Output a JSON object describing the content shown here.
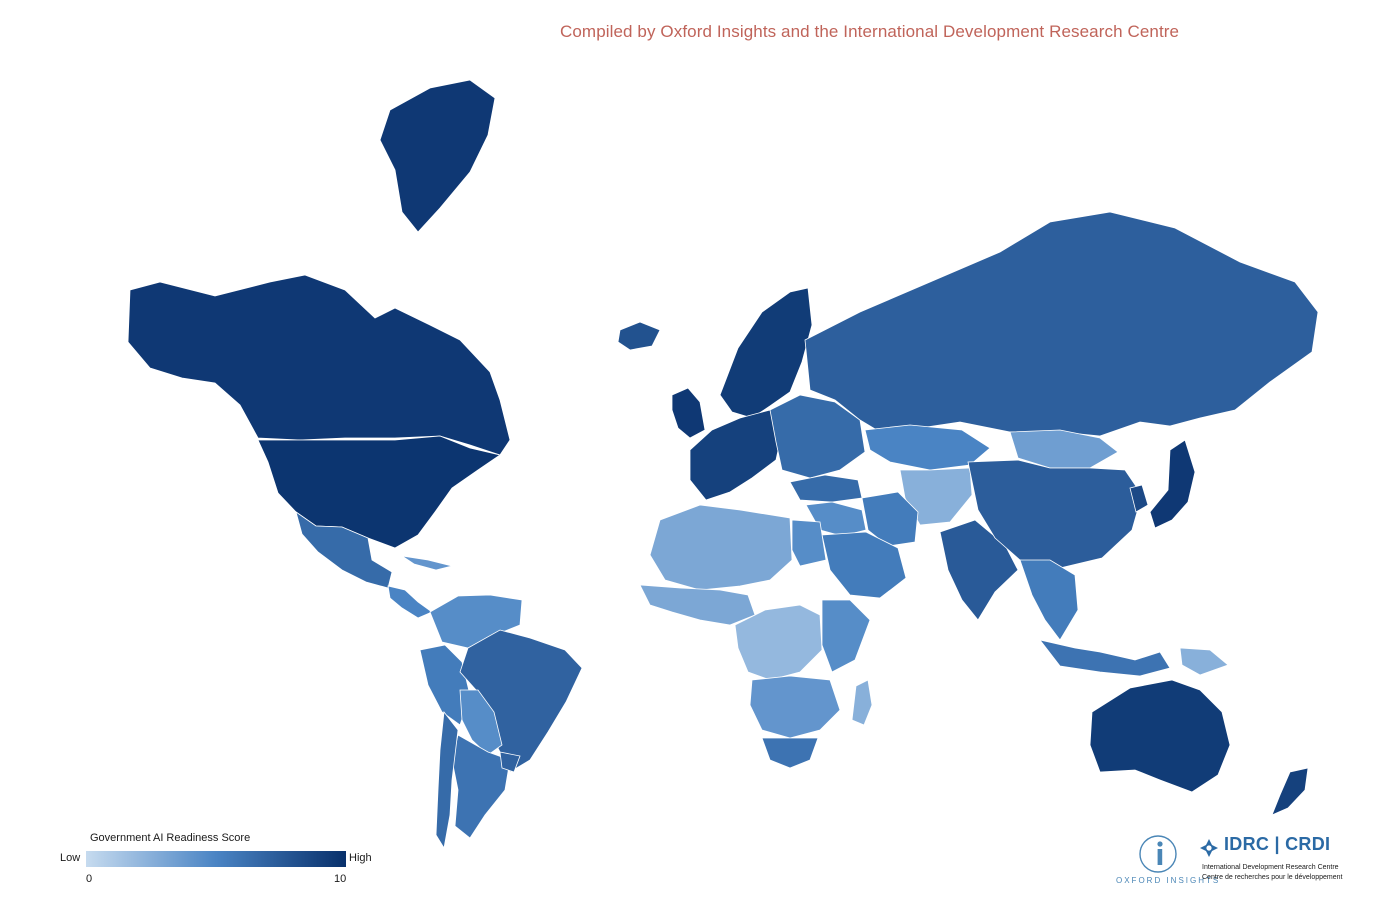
{
  "header": {
    "subtitle": "Compiled by Oxford Insights and the International Development Research Centre"
  },
  "legend": {
    "title": "Government AI Readiness Score",
    "low_label": "Low",
    "high_label": "High",
    "min_value": "0",
    "max_value": "10",
    "color_low": "#c6dbef",
    "color_high": "#08306b"
  },
  "logos": {
    "oxford_insights_text": "OXFORD INSIGHTS",
    "idrc_title": "IDRC | CRDI",
    "idrc_subtitle_en": "International Development Research Centre",
    "idrc_subtitle_fr": "Centre de recherches pour le développement"
  },
  "regions": [
    {
      "name": "Canada",
      "score": 9.5
    },
    {
      "name": "United States",
      "score": 9.7
    },
    {
      "name": "Greenland",
      "score": 9.5
    },
    {
      "name": "Mexico",
      "score": 6.5
    },
    {
      "name": "Central America",
      "score": 5.0
    },
    {
      "name": "Cuba",
      "score": 4.0
    },
    {
      "name": "Colombia / Venezuela",
      "score": 4.5
    },
    {
      "name": "Peru / Ecuador",
      "score": 5.5
    },
    {
      "name": "Brazil",
      "score": 7.0
    },
    {
      "name": "Bolivia / Paraguay",
      "score": 4.5
    },
    {
      "name": "Argentina",
      "score": 6.0
    },
    {
      "name": "Chile",
      "score": 6.5
    },
    {
      "name": "Uruguay",
      "score": 7.0
    },
    {
      "name": "Iceland",
      "score": 8.0
    },
    {
      "name": "United Kingdom / Ireland",
      "score": 9.5
    },
    {
      "name": "Scandinavia",
      "score": 9.3
    },
    {
      "name": "Western Europe",
      "score": 9.0
    },
    {
      "name": "Eastern Europe",
      "score": 6.5
    },
    {
      "name": "Russia",
      "score": 7.2
    },
    {
      "name": "Kazakhstan",
      "score": 5.0
    },
    {
      "name": "Mongolia",
      "score": 3.5
    },
    {
      "name": "Central Asia / Afghanistan",
      "score": 2.5
    },
    {
      "name": "Turkey",
      "score": 6.5
    },
    {
      "name": "Iran",
      "score": 5.5
    },
    {
      "name": "Middle East",
      "score": 4.5
    },
    {
      "name": "Saudi Arabia",
      "score": 5.5
    },
    {
      "name": "India",
      "score": 7.5
    },
    {
      "name": "China",
      "score": 7.3
    },
    {
      "name": "Japan",
      "score": 9.5
    },
    {
      "name": "South Korea",
      "score": 8.5
    },
    {
      "name": "Southeast Asia",
      "score": 5.5
    },
    {
      "name": "Indonesia",
      "score": 6.0
    },
    {
      "name": "Papua New Guinea",
      "score": 2.5
    },
    {
      "name": "Australia",
      "score": 9.3
    },
    {
      "name": "New Zealand",
      "score": 9.0
    },
    {
      "name": "North Africa",
      "score": 3.0
    },
    {
      "name": "Egypt",
      "score": 4.5
    },
    {
      "name": "West Africa",
      "score": 3.0
    },
    {
      "name": "Central Africa",
      "score": 2.0
    },
    {
      "name": "East Africa",
      "score": 4.5
    },
    {
      "name": "Southern Africa",
      "score": 4.0
    },
    {
      "name": "South Africa",
      "score": 6.0
    },
    {
      "name": "Madagascar",
      "score": 2.5
    }
  ]
}
